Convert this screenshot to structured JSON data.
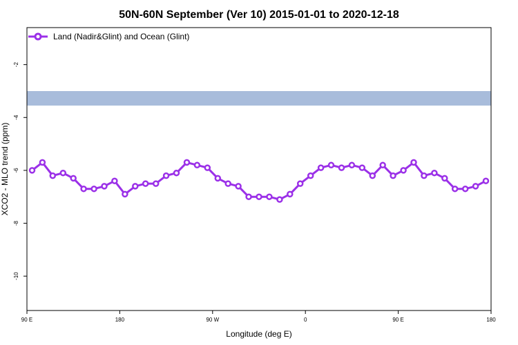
{
  "chart_data": {
    "type": "line",
    "title": "50N-60N September (Ver 10)   2015-01-01 to 2020-12-18",
    "xlabel": "Longitude (deg E)",
    "ylabel": "XCO2 - MLO trend (ppm)",
    "x_ticks": [
      {
        "value": 90,
        "label": "90 E"
      },
      {
        "value": 180,
        "label": "180"
      },
      {
        "value": 270,
        "label": "90 W"
      },
      {
        "value": 360,
        "label": "0"
      },
      {
        "value": 450,
        "label": "90 E"
      },
      {
        "value": 540,
        "label": "180"
      }
    ],
    "y_ticks": [
      {
        "value": -2,
        "label": "-2"
      },
      {
        "value": -4,
        "label": "-4"
      },
      {
        "value": -6,
        "label": "-6"
      },
      {
        "value": -8,
        "label": "-8"
      },
      {
        "value": -10,
        "label": "-10"
      }
    ],
    "xlim": [
      90,
      540
    ],
    "ylim": [
      -11.3,
      -0.6
    ],
    "grid": false,
    "legend_position": "top-left",
    "map_band": {
      "y_top": -3.0,
      "y_bottom": -3.55,
      "ocean_color": "#a8bcdb",
      "land_color": "#fcd77a"
    },
    "series": [
      {
        "name": "Land (Nadir&Glint) and Ocean (Glint)",
        "color": "#9b30e8",
        "x": [
          95,
          105,
          115,
          125,
          135,
          145,
          155,
          165,
          175,
          185,
          195,
          205,
          215,
          225,
          235,
          245,
          255,
          265,
          275,
          285,
          295,
          305,
          315,
          325,
          335,
          345,
          355,
          365,
          375,
          385,
          395,
          405,
          415,
          425,
          435,
          445,
          455,
          465,
          475,
          485,
          495,
          505,
          515,
          525,
          535
        ],
        "values": [
          -6.0,
          -5.7,
          -6.2,
          -6.1,
          -6.3,
          -6.7,
          -6.7,
          -6.6,
          -6.4,
          -6.9,
          -6.6,
          -6.5,
          -6.5,
          -6.2,
          -6.1,
          -5.7,
          -5.8,
          -5.9,
          -6.3,
          -6.5,
          -6.6,
          -7.0,
          -7.0,
          -7.0,
          -7.1,
          -6.9,
          -6.5,
          -6.2,
          -5.9,
          -5.8,
          -5.9,
          -5.8,
          -5.9,
          -6.2,
          -5.8,
          -6.2,
          -6.0,
          -5.7,
          -6.2,
          -6.1,
          -6.3,
          -6.7,
          -6.7,
          -6.6,
          -6.4
        ]
      }
    ]
  }
}
